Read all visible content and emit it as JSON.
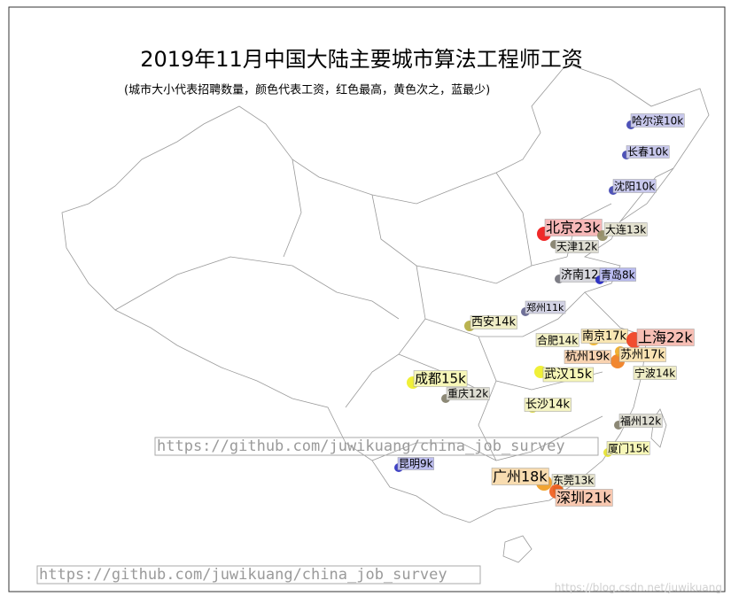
{
  "title": "2019年11月中国大陆主要城市算法工程师工资",
  "subtitle": "(城市大小代表招聘数量，颜色代表工资，红色最高，黄色次之，蓝最少)",
  "watermark": "https://github.com/juwikuang/china_job_survey",
  "footer_link": "https://github.com/juwikuang/china_job_survey",
  "credit": "https://blog.csdn.net/juwikuang",
  "cities": [
    {
      "label": "哈尔滨10k",
      "color": "#3b3fb0",
      "label_color": "#c8c8ec"
    },
    {
      "label": "长春10k",
      "color": "#3b3fb0",
      "label_color": "#c8c8ec"
    },
    {
      "label": "沈阳10k",
      "color": "#3b3fb0",
      "label_color": "#c8c8ec"
    },
    {
      "label": "北京23k",
      "color": "#ee1111",
      "label_color": "#f7b8b8"
    },
    {
      "label": "大连13k",
      "color": "#8f8a60",
      "label_color": "#e3e1cf"
    },
    {
      "label": "天津12k",
      "color": "#7f7b66",
      "label_color": "#deddd2"
    },
    {
      "label": "济南12k",
      "color": "#6f6f78",
      "label_color": "#d8d8de"
    },
    {
      "label": "青岛8k",
      "color": "#1e22c0",
      "label_color": "#b9bbef"
    },
    {
      "label": "郑州11k",
      "color": "#5f608e",
      "label_color": "#d2d2e4"
    },
    {
      "label": "西安14k",
      "color": "#b3ab3c",
      "label_color": "#efedc6"
    },
    {
      "label": "南京17k",
      "color": "#f0b020",
      "label_color": "#f9e6b3"
    },
    {
      "label": "上海22k",
      "color": "#ef3a1a",
      "label_color": "#f7beb4"
    },
    {
      "label": "合肥14k",
      "color": "#c4bb36",
      "label_color": "#f1efc4"
    },
    {
      "label": "杭州19k",
      "color": "#f07a1a",
      "label_color": "#f8d2b0"
    },
    {
      "label": "苏州17k",
      "color": "#efa81e",
      "label_color": "#f9e3b3"
    },
    {
      "label": "宁波14k",
      "color": "#b8b03a",
      "label_color": "#efedc6"
    },
    {
      "label": "成都15k",
      "color": "#eeee22",
      "label_color": "#f7f7b8"
    },
    {
      "label": "武汉15k",
      "color": "#eeee22",
      "label_color": "#f7f7b8"
    },
    {
      "label": "重庆12k",
      "color": "#7f7b66",
      "label_color": "#deddd2"
    },
    {
      "label": "长沙14k",
      "color": "#d8d430",
      "label_color": "#f4f3c2"
    },
    {
      "label": "福州12k",
      "color": "#7f7b66",
      "label_color": "#deddd2"
    },
    {
      "label": "厦门15k",
      "color": "#e6e22a",
      "label_color": "#f7f7b8"
    },
    {
      "label": "昆明9k",
      "color": "#2a2ec0",
      "label_color": "#bcbdef"
    },
    {
      "label": "广州18k",
      "color": "#f09a1a",
      "label_color": "#f8dcb0"
    },
    {
      "label": "东莞13k",
      "color": "#9b9550",
      "label_color": "#e5e3cc"
    },
    {
      "label": "深圳21k",
      "color": "#ef5a1a",
      "label_color": "#f8c8b0"
    }
  ]
}
